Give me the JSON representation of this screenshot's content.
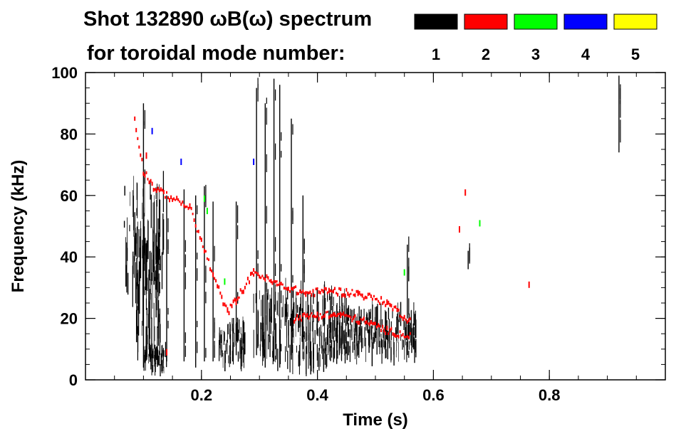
{
  "chart_data": {
    "type": "spectrogram",
    "title_line1": "Shot 132890 ωB(ω) spectrum",
    "title_line2": "for toroidal mode number:",
    "xlabel": "Time (s)",
    "ylabel": "Frequency (kHz)",
    "xlim": [
      0.0,
      1.0
    ],
    "ylim": [
      0,
      100
    ],
    "x_ticks": [
      {
        "value": 0.2,
        "label": "0.2"
      },
      {
        "value": 0.4,
        "label": "0.4"
      },
      {
        "value": 0.6,
        "label": "0.6"
      },
      {
        "value": 0.8,
        "label": "0.8"
      }
    ],
    "y_ticks": [
      {
        "value": 0,
        "label": "0"
      },
      {
        "value": 20,
        "label": "20"
      },
      {
        "value": 40,
        "label": "40"
      },
      {
        "value": 60,
        "label": "60"
      },
      {
        "value": 80,
        "label": "80"
      },
      {
        "value": 100,
        "label": "100"
      }
    ],
    "x_minor_step": 0.05,
    "y_minor_step": 5,
    "legend": [
      {
        "label": "1",
        "color": "#000000"
      },
      {
        "label": "2",
        "color": "#ff0000"
      },
      {
        "label": "3",
        "color": "#00ff00"
      },
      {
        "label": "4",
        "color": "#0000ff"
      },
      {
        "label": "5",
        "color": "#ffff00"
      }
    ],
    "series": [
      {
        "mode": 1,
        "color": "#000000",
        "name": "n=1 blobs",
        "blobs": [
          {
            "t0": 0.065,
            "t1": 0.135,
            "f0": 30,
            "f1": 62
          },
          {
            "t0": 0.085,
            "t1": 0.13,
            "f0": 10,
            "f1": 44
          },
          {
            "t0": 0.1,
            "t1": 0.14,
            "f0": 3,
            "f1": 10
          },
          {
            "t0": 0.23,
            "t1": 0.275,
            "f0": 6,
            "f1": 18
          },
          {
            "t0": 0.29,
            "t1": 0.45,
            "f0": 6,
            "f1": 28
          },
          {
            "t0": 0.42,
            "t1": 0.57,
            "f0": 8,
            "f1": 22
          }
        ]
      },
      {
        "mode": 1,
        "color": "#000000",
        "name": "n=1 vertical bursts",
        "bursts": [
          {
            "t": 0.1,
            "f0": 4,
            "f1": 90
          },
          {
            "t": 0.14,
            "f0": 6,
            "f1": 60
          },
          {
            "t": 0.17,
            "f0": 6,
            "f1": 62
          },
          {
            "t": 0.19,
            "f0": 4,
            "f1": 60
          },
          {
            "t": 0.205,
            "f0": 6,
            "f1": 63
          },
          {
            "t": 0.22,
            "f0": 6,
            "f1": 58
          },
          {
            "t": 0.26,
            "f0": 8,
            "f1": 58
          },
          {
            "t": 0.295,
            "f0": 8,
            "f1": 95
          },
          {
            "t": 0.31,
            "f0": 4,
            "f1": 90
          },
          {
            "t": 0.325,
            "f0": 6,
            "f1": 98
          },
          {
            "t": 0.335,
            "f0": 4,
            "f1": 96
          },
          {
            "t": 0.355,
            "f0": 8,
            "f1": 85
          },
          {
            "t": 0.375,
            "f0": 10,
            "f1": 60
          },
          {
            "t": 0.555,
            "f0": 20,
            "f1": 44
          },
          {
            "t": 0.66,
            "f0": 36,
            "f1": 42
          },
          {
            "t": 0.92,
            "f0": 74,
            "f1": 99
          }
        ]
      },
      {
        "mode": 2,
        "color": "#ff0000",
        "name": "n=2 chirp",
        "points": [
          {
            "t": 0.085,
            "f": 85
          },
          {
            "t": 0.1,
            "f": 68
          },
          {
            "t": 0.12,
            "f": 62
          },
          {
            "t": 0.15,
            "f": 59
          },
          {
            "t": 0.18,
            "f": 56
          },
          {
            "t": 0.22,
            "f": 34
          },
          {
            "t": 0.245,
            "f": 22
          },
          {
            "t": 0.26,
            "f": 26
          },
          {
            "t": 0.29,
            "f": 35
          },
          {
            "t": 0.33,
            "f": 31
          },
          {
            "t": 0.38,
            "f": 28
          },
          {
            "t": 0.42,
            "f": 29
          },
          {
            "t": 0.47,
            "f": 28
          },
          {
            "t": 0.52,
            "f": 25
          },
          {
            "t": 0.56,
            "f": 19
          }
        ]
      },
      {
        "mode": 2,
        "color": "#ff0000",
        "name": "n=2 lower branch",
        "points": [
          {
            "t": 0.36,
            "f": 20
          },
          {
            "t": 0.4,
            "f": 21
          },
          {
            "t": 0.44,
            "f": 21
          },
          {
            "t": 0.48,
            "f": 19
          },
          {
            "t": 0.52,
            "f": 16
          },
          {
            "t": 0.56,
            "f": 14
          }
        ]
      },
      {
        "mode": 2,
        "color": "#ff0000",
        "name": "n=2 isolated",
        "dots": [
          {
            "t": 0.655,
            "f": 60
          },
          {
            "t": 0.645,
            "f": 48
          },
          {
            "t": 0.765,
            "f": 30
          },
          {
            "t": 0.14,
            "f": 8
          },
          {
            "t": 0.105,
            "f": 72
          }
        ]
      },
      {
        "mode": 3,
        "color": "#00ff00",
        "name": "n=3 isolated",
        "dots": [
          {
            "t": 0.24,
            "f": 31
          },
          {
            "t": 0.205,
            "f": 58
          },
          {
            "t": 0.55,
            "f": 34
          },
          {
            "t": 0.68,
            "f": 50
          },
          {
            "t": 0.21,
            "f": 54
          }
        ]
      },
      {
        "mode": 4,
        "color": "#0000ff",
        "name": "n=4 isolated",
        "dots": [
          {
            "t": 0.115,
            "f": 80
          },
          {
            "t": 0.165,
            "f": 70
          },
          {
            "t": 0.29,
            "f": 70
          }
        ]
      }
    ]
  }
}
